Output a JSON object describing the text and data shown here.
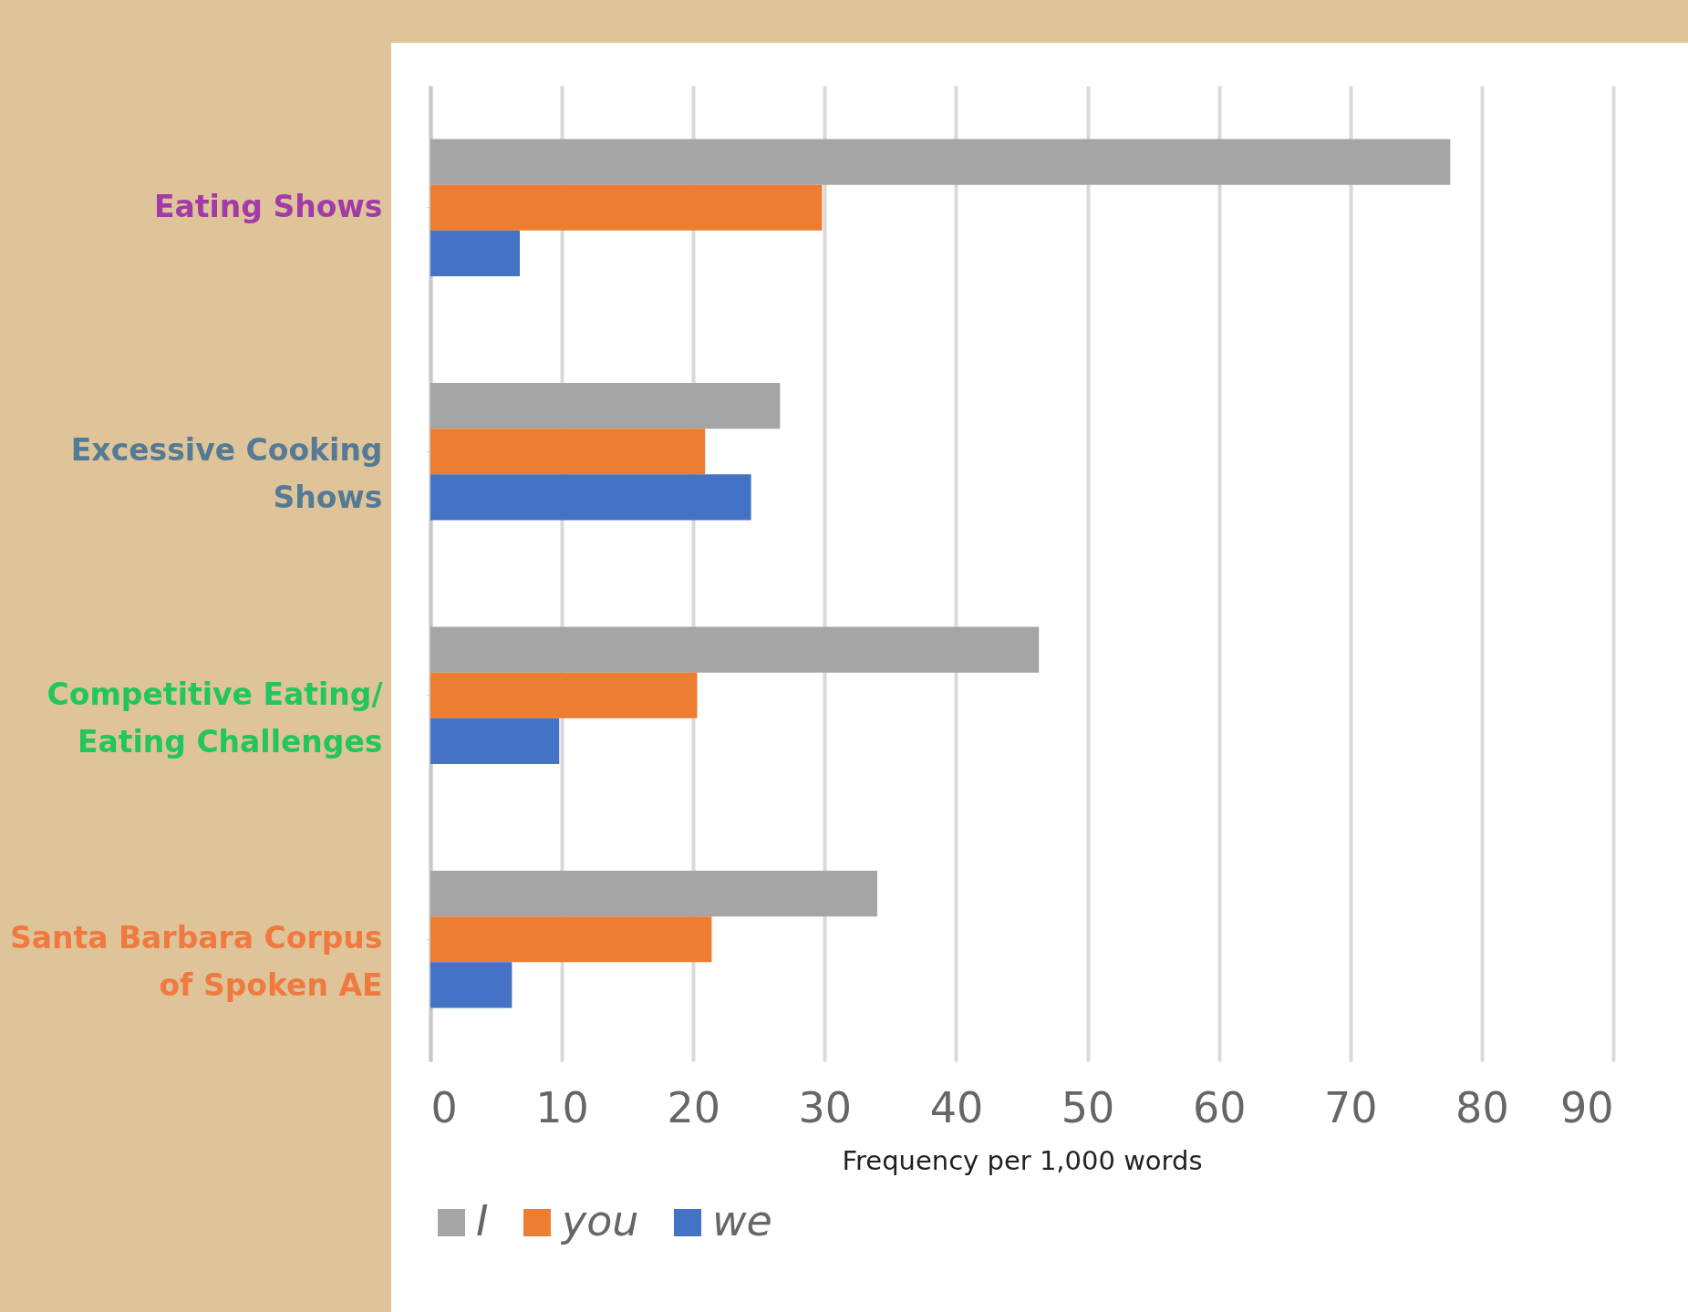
{
  "chart_data": {
    "type": "bar",
    "orientation": "horizontal",
    "xlabel": "Frequency per 1,000 words",
    "categories": [
      "Eating Shows",
      "Excessive Cooking Shows",
      "Competitive Eating/ Eating Challenges",
      "Santa Barbara Corpus of Spoken AE"
    ],
    "series": [
      {
        "name": "I",
        "color": "#a5a5a5",
        "values": [
          77.6,
          26.6,
          46.3,
          34.0
        ]
      },
      {
        "name": "you",
        "color": "#ed7d31",
        "values": [
          29.8,
          20.9,
          20.3,
          21.4
        ]
      },
      {
        "name": "we",
        "color": "#4472c4",
        "values": [
          6.8,
          24.4,
          9.8,
          6.2
        ]
      }
    ],
    "xlim": [
      0,
      90
    ],
    "xticks": [
      0,
      10,
      20,
      30,
      40,
      50,
      60,
      70,
      80,
      90
    ],
    "grid": "x",
    "legend": "bottom left"
  }
}
